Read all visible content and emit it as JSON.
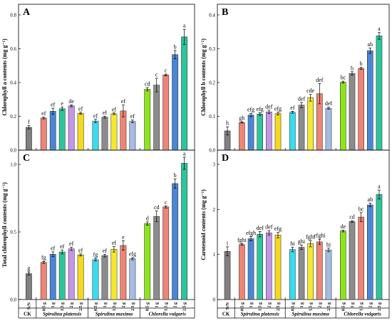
{
  "chart_data": [
    {
      "type": "bar",
      "panel": "A",
      "ylabel": "Chlorophyll a contents (mg g⁻¹)",
      "ylim": [
        0,
        0.8
      ],
      "yticks": [
        "0.0",
        "0.2",
        "0.4",
        "0.6",
        "0.8"
      ],
      "values": [
        0.135,
        0.19,
        0.23,
        0.245,
        0.262,
        0.218,
        0.172,
        0.195,
        0.215,
        0.232,
        0.17,
        0.36,
        0.385,
        0.445,
        0.565,
        0.67
      ],
      "errors": [
        0.01,
        0.005,
        0.018,
        0.01,
        0.006,
        0.006,
        0.01,
        0.006,
        0.005,
        0.035,
        0.008,
        0.01,
        0.04,
        0.005,
        0.025,
        0.045
      ],
      "letters": [
        "f",
        "ef",
        "ef",
        "e",
        "de",
        "ef",
        "ef",
        "ef",
        "ef",
        "ef",
        "ef",
        "cd",
        "c",
        "c",
        "b",
        "a"
      ]
    },
    {
      "type": "bar",
      "panel": "B",
      "ylabel": "Chlorophyll b contents (mg g⁻¹)",
      "ylim": [
        0,
        0.4
      ],
      "yticks": [
        "0.0",
        "0.1",
        "0.2",
        "0.3",
        "0.4"
      ],
      "values": [
        0.057,
        0.082,
        0.104,
        0.107,
        0.113,
        0.108,
        0.112,
        0.133,
        0.155,
        0.167,
        0.124,
        0.201,
        0.227,
        0.242,
        0.294,
        0.338
      ],
      "errors": [
        0.012,
        0.002,
        0.005,
        0.004,
        0.005,
        0.004,
        0.003,
        0.008,
        0.01,
        0.03,
        0.003,
        0.003,
        0.005,
        0.003,
        0.008,
        0.01
      ],
      "letters": [
        "h",
        "gh",
        "efg",
        "efg",
        "def",
        "efg",
        "ef",
        "def",
        "cde",
        "def",
        "def",
        "bc",
        "b",
        "b",
        "ab",
        "a"
      ]
    },
    {
      "type": "bar",
      "panel": "C",
      "ylabel": "Total chlorophyll contents (mg g⁻¹)",
      "ylim": [
        0,
        1.0
      ],
      "yticks": [
        "0.0",
        "0.5",
        "1.0"
      ],
      "values": [
        0.192,
        0.275,
        0.335,
        0.352,
        0.375,
        0.33,
        0.295,
        0.325,
        0.372,
        0.4,
        0.302,
        0.562,
        0.615,
        0.685,
        0.858,
        1.008
      ],
      "errors": [
        0.012,
        0.008,
        0.018,
        0.015,
        0.012,
        0.008,
        0.01,
        0.01,
        0.02,
        0.035,
        0.008,
        0.012,
        0.04,
        0.008,
        0.035,
        0.045
      ],
      "letters": [
        "g",
        "fg",
        "ef",
        "ef",
        "ef",
        "ef",
        "fg",
        "ef",
        "ef",
        "e",
        "efg",
        "d",
        "cd",
        "c",
        "b",
        "a"
      ]
    },
    {
      "type": "bar",
      "panel": "D",
      "ylabel": "Carotenoid contents (mg g⁻¹)",
      "ylim": [
        0,
        3
      ],
      "yticks": [
        "0",
        "1",
        "2",
        "3"
      ],
      "values": [
        1.07,
        1.22,
        1.35,
        1.45,
        1.48,
        1.43,
        1.11,
        1.16,
        1.24,
        1.28,
        1.1,
        1.52,
        1.73,
        1.83,
        2.1,
        2.33
      ],
      "errors": [
        0.1,
        0.02,
        0.05,
        0.06,
        0.05,
        0.06,
        0.05,
        0.05,
        0.07,
        0.06,
        0.04,
        0.02,
        0.02,
        0.1,
        0.04,
        0.1
      ],
      "letters": [
        "i",
        "fghi",
        "efgh",
        "def",
        "def",
        "efg",
        "hi",
        "ghi",
        "fghi",
        "efghi",
        "hi",
        "de",
        "cd",
        "bc",
        "ab",
        "a"
      ]
    }
  ],
  "x_labels": [
    "N/N",
    "0.5 g",
    "1 g",
    "1.5 g",
    "2 g",
    "2.5 g",
    "0.5 g",
    "1 g",
    "1.5 g",
    "2 g",
    "2.5 g",
    "0.5 g",
    "1 g",
    "1.5 g",
    "2 g",
    "2.5 g"
  ],
  "groups": [
    {
      "label": "CK",
      "start": 0,
      "end": 0
    },
    {
      "label": "Spirulina platensis",
      "start": 1,
      "end": 5
    },
    {
      "label": "Spirulina maxima",
      "start": 6,
      "end": 10
    },
    {
      "label": "Chlorella vulgaris",
      "start": 11,
      "end": 15
    }
  ],
  "bar_colors": [
    "#808080",
    "#ee8475",
    "#4a86d4",
    "#2ec49c",
    "#c596e8",
    "#f5d91f",
    "#38dcef",
    "#8c8c8c",
    "#f5e830",
    "#ee8475",
    "#a5bde2",
    "#8ee41a",
    "#8c8c8c",
    "#ee8475",
    "#4a86d4",
    "#2ec49c"
  ]
}
